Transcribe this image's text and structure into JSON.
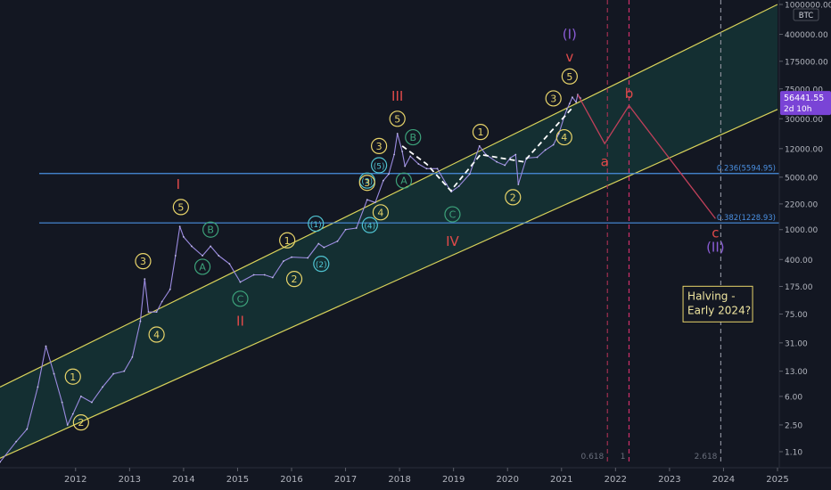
{
  "chart_data": {
    "type": "line",
    "symbol": "BTC",
    "scale": "log",
    "grid": false,
    "last_price_label": "56441.55",
    "countdown_label": "2d 10h",
    "y_ticks": [
      {
        "label": "1000000.00",
        "value": 1000000
      },
      {
        "label": "400000.00",
        "value": 400000
      },
      {
        "label": "175000.00",
        "value": 175000
      },
      {
        "label": "75000.00",
        "value": 75000
      },
      {
        "label": "30000.00",
        "value": 30000
      },
      {
        "label": "12000.00",
        "value": 12000
      },
      {
        "label": "5000.00",
        "value": 5000
      },
      {
        "label": "2200.00",
        "value": 2200
      },
      {
        "label": "1000.00",
        "value": 1000
      },
      {
        "label": "400.00",
        "value": 400
      },
      {
        "label": "175.00",
        "value": 175
      },
      {
        "label": "75.00",
        "value": 75
      },
      {
        "label": "31.00",
        "value": 31
      },
      {
        "label": "13.00",
        "value": 13
      },
      {
        "label": "6.00",
        "value": 6
      },
      {
        "label": "2.50",
        "value": 2.5
      },
      {
        "label": "1.10",
        "value": 1.1
      }
    ],
    "x_ticks": [
      {
        "label": "2012",
        "value": 2012
      },
      {
        "label": "2013",
        "value": 2013
      },
      {
        "label": "2014",
        "value": 2014
      },
      {
        "label": "2015",
        "value": 2015
      },
      {
        "label": "2016",
        "value": 2016
      },
      {
        "label": "2017",
        "value": 2017
      },
      {
        "label": "2018",
        "value": 2018
      },
      {
        "label": "2019",
        "value": 2019
      },
      {
        "label": "2020",
        "value": 2020
      },
      {
        "label": "2021",
        "value": 2021
      },
      {
        "label": "2022",
        "value": 2022
      },
      {
        "label": "2023",
        "value": 2023
      },
      {
        "label": "2024",
        "value": 2024
      },
      {
        "label": "2025",
        "value": 2025
      }
    ],
    "price": [
      [
        2010.6,
        0.8
      ],
      [
        2010.9,
        1.5
      ],
      [
        2011.1,
        2.2
      ],
      [
        2011.3,
        8
      ],
      [
        2011.45,
        28
      ],
      [
        2011.6,
        12
      ],
      [
        2011.75,
        5
      ],
      [
        2011.85,
        2.5
      ],
      [
        2011.95,
        3.5
      ],
      [
        2012.1,
        6
      ],
      [
        2012.3,
        5
      ],
      [
        2012.5,
        8
      ],
      [
        2012.7,
        12
      ],
      [
        2012.9,
        13
      ],
      [
        2013.05,
        20
      ],
      [
        2013.2,
        60
      ],
      [
        2013.28,
        220
      ],
      [
        2013.35,
        80
      ],
      [
        2013.5,
        80
      ],
      [
        2013.6,
        110
      ],
      [
        2013.75,
        160
      ],
      [
        2013.85,
        450
      ],
      [
        2013.93,
        1100
      ],
      [
        2014.0,
        800
      ],
      [
        2014.15,
        600
      ],
      [
        2014.35,
        450
      ],
      [
        2014.5,
        600
      ],
      [
        2014.65,
        450
      ],
      [
        2014.85,
        350
      ],
      [
        2015.05,
        200
      ],
      [
        2015.3,
        250
      ],
      [
        2015.5,
        250
      ],
      [
        2015.65,
        230
      ],
      [
        2015.85,
        380
      ],
      [
        2016.0,
        430
      ],
      [
        2016.3,
        420
      ],
      [
        2016.5,
        650
      ],
      [
        2016.6,
        580
      ],
      [
        2016.85,
        700
      ],
      [
        2017.0,
        1000
      ],
      [
        2017.2,
        1050
      ],
      [
        2017.4,
        2500
      ],
      [
        2017.55,
        2300
      ],
      [
        2017.7,
        4500
      ],
      [
        2017.8,
        5500
      ],
      [
        2017.9,
        10000
      ],
      [
        2017.96,
        19000
      ],
      [
        2018.05,
        11000
      ],
      [
        2018.1,
        7000
      ],
      [
        2018.2,
        9500
      ],
      [
        2018.35,
        7500
      ],
      [
        2018.5,
        6500
      ],
      [
        2018.7,
        6500
      ],
      [
        2018.87,
        4000
      ],
      [
        2018.96,
        3200
      ],
      [
        2019.1,
        3800
      ],
      [
        2019.3,
        5500
      ],
      [
        2019.48,
        13000
      ],
      [
        2019.6,
        10000
      ],
      [
        2019.8,
        8000
      ],
      [
        2019.95,
        7200
      ],
      [
        2020.05,
        9000
      ],
      [
        2020.15,
        10000
      ],
      [
        2020.2,
        4000
      ],
      [
        2020.35,
        9000
      ],
      [
        2020.55,
        9200
      ],
      [
        2020.7,
        11500
      ],
      [
        2020.85,
        13500
      ],
      [
        2020.95,
        19000
      ],
      [
        2021.05,
        32000
      ],
      [
        2021.1,
        40000
      ],
      [
        2021.15,
        48000
      ],
      [
        2021.2,
        58000
      ],
      [
        2021.27,
        50000
      ],
      [
        2021.3,
        63000
      ],
      [
        2021.35,
        56441
      ]
    ],
    "channel": {
      "upper": [
        [
          2010.6,
          8
        ],
        [
          2025.0,
          1000000
        ]
      ],
      "lower": [
        [
          2010.6,
          0.9
        ],
        [
          2025.0,
          40000
        ]
      ]
    },
    "fib_levels": [
      {
        "label": "0.236(5594.95)",
        "value": 5595
      },
      {
        "label": "0.382(1228.93)",
        "value": 1229
      }
    ],
    "vertical_lines": [
      {
        "x": 2021.85,
        "color": "#a03050",
        "dashed": true,
        "label": "0.618"
      },
      {
        "x": 2022.25,
        "color": "#d0306a",
        "dashed": true,
        "label": "1"
      },
      {
        "x": 2023.95,
        "color": "#8a8e99",
        "dashed": true,
        "label": "2.618"
      }
    ],
    "projection": [
      [
        2021.3,
        63000
      ],
      [
        2021.8,
        14000
      ],
      [
        2022.25,
        45000
      ],
      [
        2023.85,
        1400
      ]
    ],
    "trend_dashed": [
      [
        2018.05,
        13000
      ],
      [
        2018.5,
        7500
      ],
      [
        2018.95,
        3300
      ],
      [
        2019.5,
        10000
      ],
      [
        2020.3,
        8000
      ],
      [
        2021.2,
        42000
      ]
    ],
    "wave_labels": [
      {
        "text": "1",
        "x": 2011.95,
        "y": 11,
        "color": "#e8d46a",
        "circle": true
      },
      {
        "text": "2",
        "x": 2012.1,
        "y": 2.7,
        "color": "#e8d46a",
        "circle": true
      },
      {
        "text": "3",
        "x": 2013.25,
        "y": 380,
        "color": "#e8d46a",
        "circle": true
      },
      {
        "text": "4",
        "x": 2013.5,
        "y": 40,
        "color": "#e8d46a",
        "circle": true
      },
      {
        "text": "5",
        "x": 2013.95,
        "y": 2000,
        "color": "#e8d46a",
        "circle": true
      },
      {
        "text": "I",
        "x": 2013.9,
        "y": 4000,
        "color": "#e04a4a",
        "circle": false
      },
      {
        "text": "A",
        "x": 2014.35,
        "y": 320,
        "color": "#3da37b",
        "circle": true
      },
      {
        "text": "B",
        "x": 2014.5,
        "y": 1000,
        "color": "#3da37b",
        "circle": true
      },
      {
        "text": "C",
        "x": 2015.05,
        "y": 120,
        "color": "#3da37b",
        "circle": true
      },
      {
        "text": "II",
        "x": 2015.05,
        "y": 60,
        "color": "#e04a4a",
        "circle": false
      },
      {
        "text": "1",
        "x": 2015.92,
        "y": 720,
        "color": "#e8d46a",
        "circle": true
      },
      {
        "text": "2",
        "x": 2016.05,
        "y": 220,
        "color": "#e8d46a",
        "circle": true
      },
      {
        "text": "(1)",
        "x": 2016.45,
        "y": 1200,
        "color": "#4fc3d1",
        "circle": true
      },
      {
        "text": "(2)",
        "x": 2016.55,
        "y": 350,
        "color": "#4fc3d1",
        "circle": true
      },
      {
        "text": "(3)",
        "x": 2017.4,
        "y": 4500,
        "color": "#4fc3d1",
        "circle": true
      },
      {
        "text": "(4)",
        "x": 2017.45,
        "y": 1150,
        "color": "#4fc3d1",
        "circle": true
      },
      {
        "text": "3",
        "x": 2017.4,
        "y": 4200,
        "color": "#e8d46a",
        "circle": true
      },
      {
        "text": "(5)",
        "x": 2017.62,
        "y": 7200,
        "color": "#4fc3d1",
        "circle": true
      },
      {
        "text": "4",
        "x": 2017.65,
        "y": 1700,
        "color": "#e8d46a",
        "circle": true
      },
      {
        "text": "3",
        "x": 2017.62,
        "y": 13000,
        "color": "#e8d46a",
        "circle": true
      },
      {
        "text": "5",
        "x": 2017.96,
        "y": 30000,
        "color": "#e8d46a",
        "circle": true
      },
      {
        "text": "III",
        "x": 2017.96,
        "y": 60000,
        "color": "#e04a4a",
        "circle": false
      },
      {
        "text": "A",
        "x": 2018.08,
        "y": 4500,
        "color": "#3da37b",
        "circle": true
      },
      {
        "text": "B",
        "x": 2018.25,
        "y": 17000,
        "color": "#3da37b",
        "circle": true
      },
      {
        "text": "C",
        "x": 2018.98,
        "y": 1600,
        "color": "#3da37b",
        "circle": true
      },
      {
        "text": "IV",
        "x": 2018.98,
        "y": 700,
        "color": "#e04a4a",
        "circle": false
      },
      {
        "text": "1",
        "x": 2019.5,
        "y": 20000,
        "color": "#e8d46a",
        "circle": true
      },
      {
        "text": "2",
        "x": 2020.1,
        "y": 2700,
        "color": "#e8d46a",
        "circle": true
      },
      {
        "text": "3",
        "x": 2020.85,
        "y": 56000,
        "color": "#e8d46a",
        "circle": true
      },
      {
        "text": "4",
        "x": 2021.05,
        "y": 17000,
        "color": "#e8d46a",
        "circle": true
      },
      {
        "text": "5",
        "x": 2021.15,
        "y": 110000,
        "color": "#e8d46a",
        "circle": true
      },
      {
        "text": "v",
        "x": 2021.15,
        "y": 200000,
        "color": "#e04a4a",
        "circle": false
      },
      {
        "text": "(I)",
        "x": 2021.15,
        "y": 400000,
        "color": "#8a5cd6",
        "circle": false
      },
      {
        "text": "a",
        "x": 2021.8,
        "y": 8000,
        "color": "#e04a4a",
        "circle": false
      },
      {
        "text": "b",
        "x": 2022.25,
        "y": 65000,
        "color": "#e04a4a",
        "circle": false
      },
      {
        "text": "c",
        "x": 2023.85,
        "y": 900,
        "color": "#e04a4a",
        "circle": false
      },
      {
        "text": "(II)",
        "x": 2023.85,
        "y": 580,
        "color": "#8a5cd6",
        "circle": false
      }
    ],
    "annotation": {
      "lines": [
        "Halving -",
        "Early 2024?"
      ],
      "x": 2023.3,
      "y": 120
    }
  }
}
